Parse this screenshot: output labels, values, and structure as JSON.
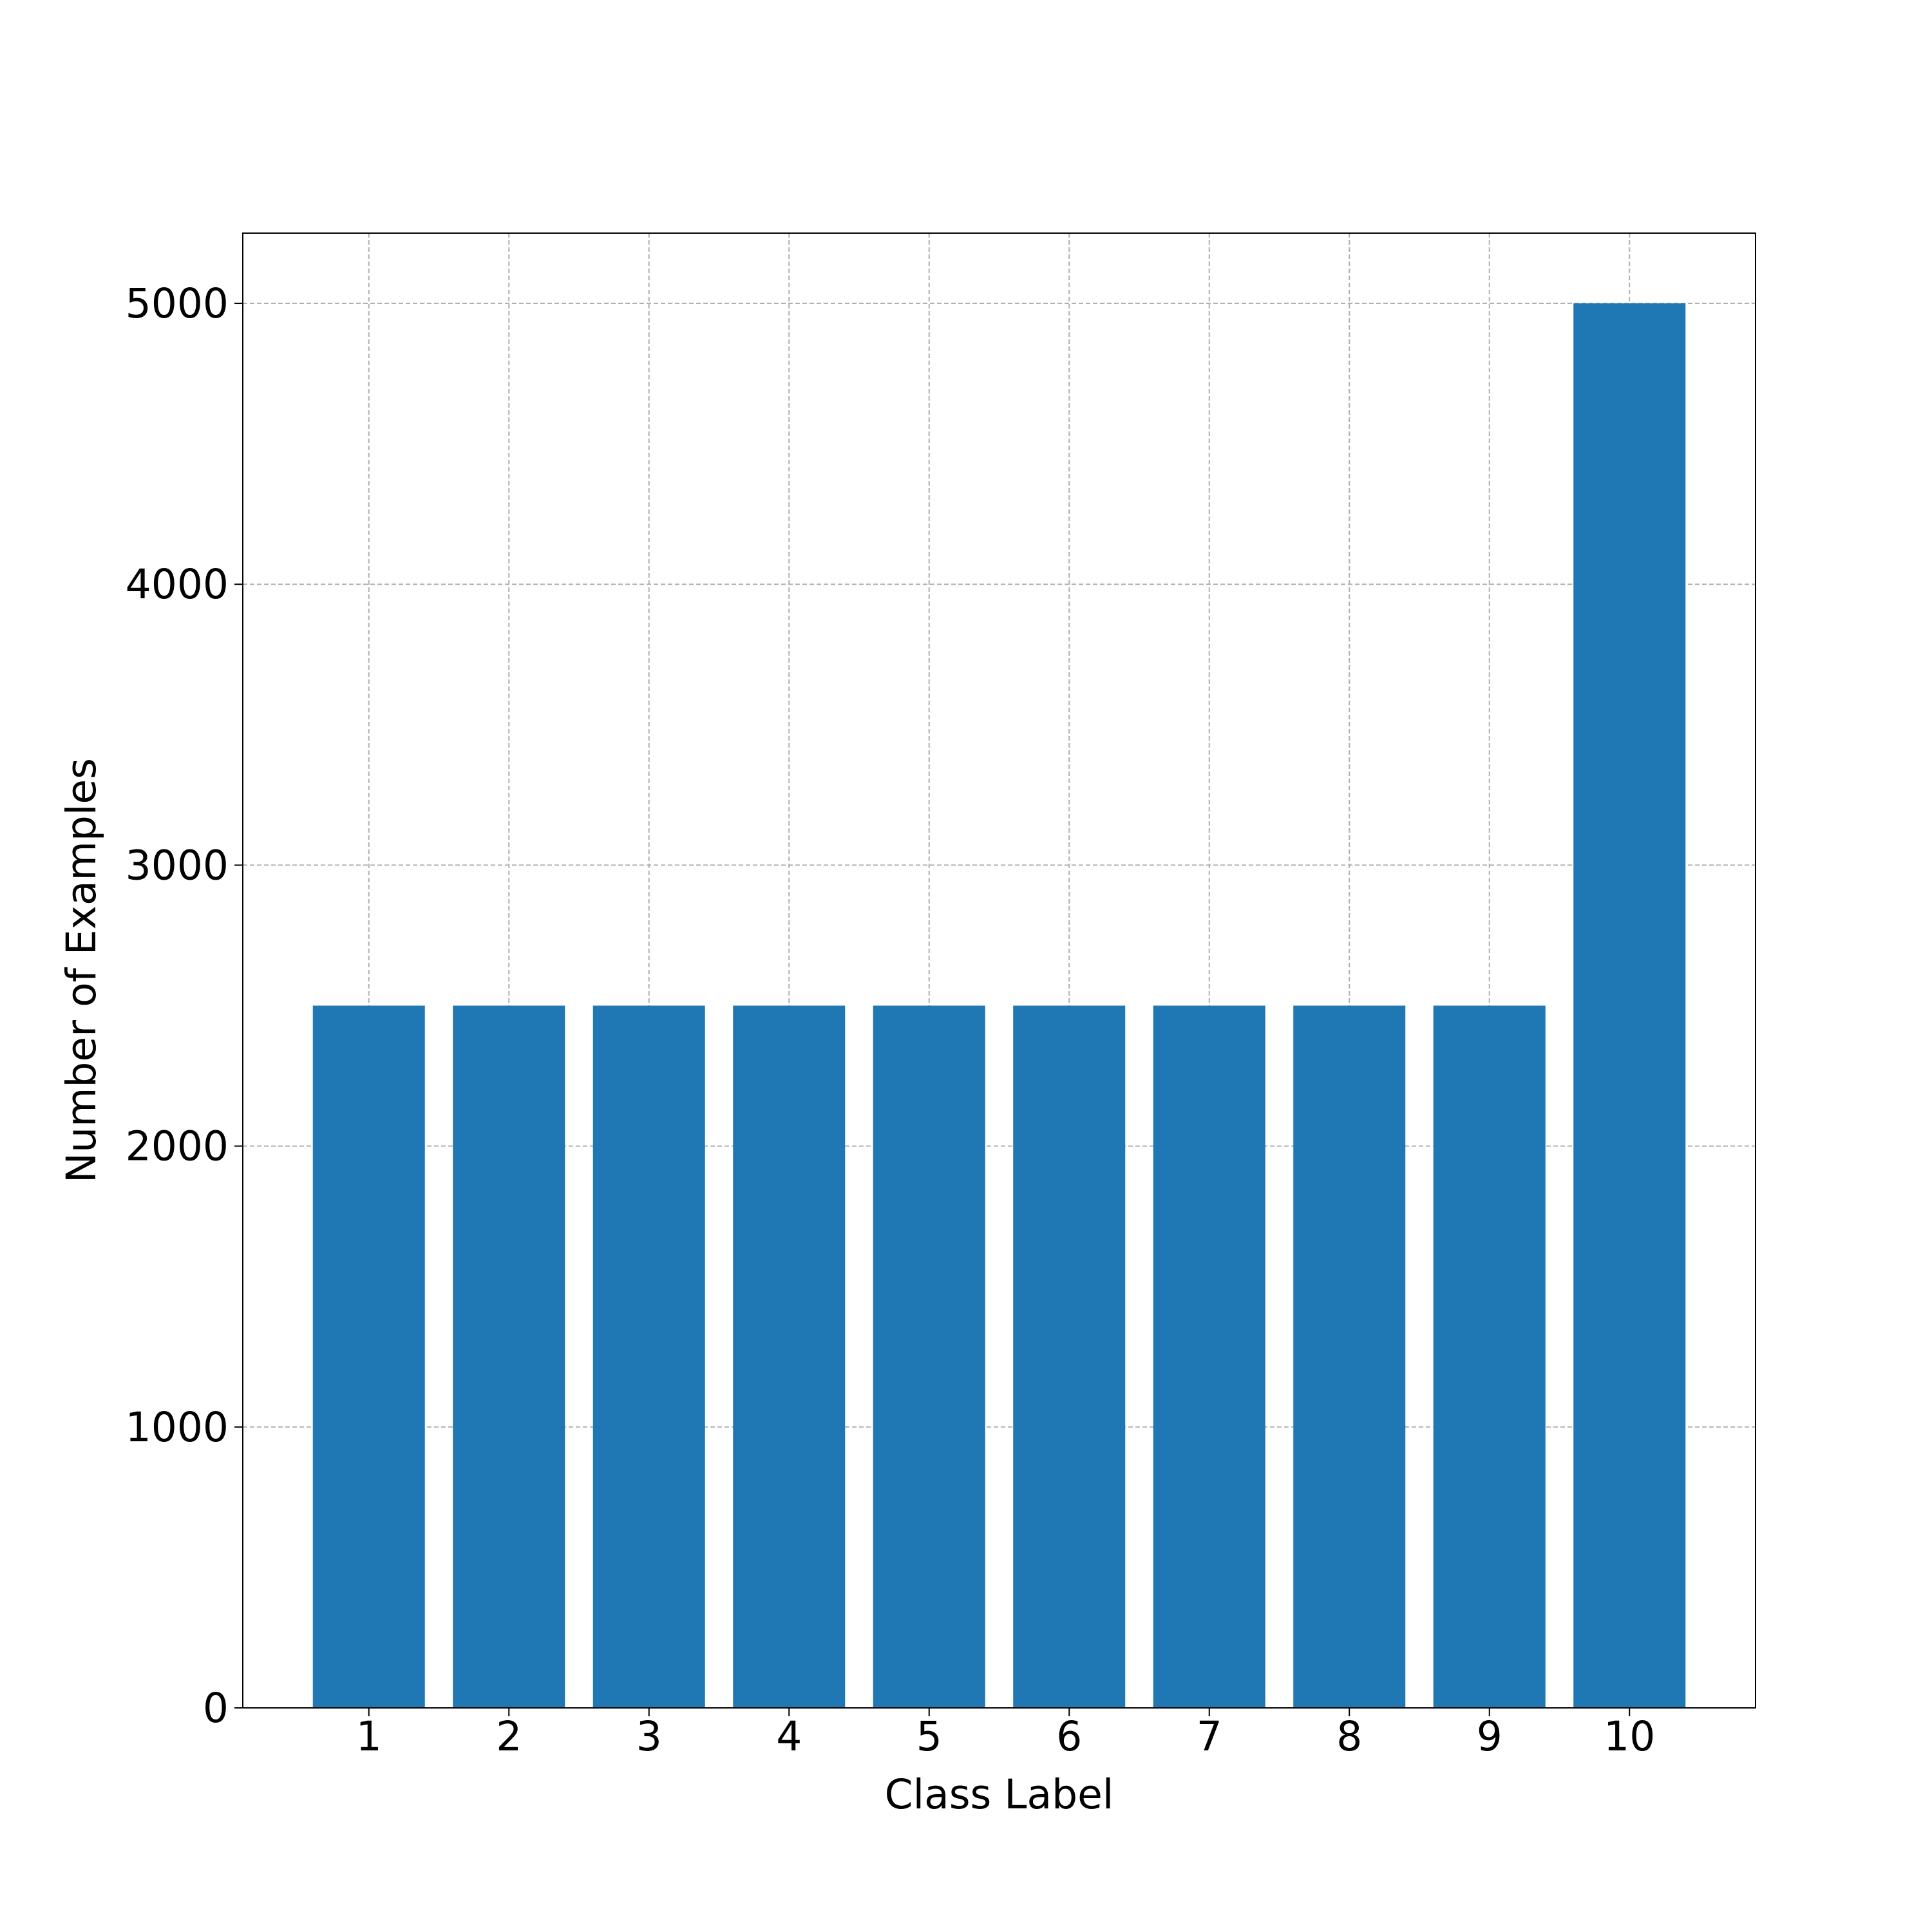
{
  "chart_data": {
    "type": "bar",
    "categories": [
      "1",
      "2",
      "3",
      "4",
      "5",
      "6",
      "7",
      "8",
      "9",
      "10"
    ],
    "values": [
      2500,
      2500,
      2500,
      2500,
      2500,
      2500,
      2500,
      2500,
      2500,
      5000
    ],
    "title": "",
    "xlabel": "Class Label",
    "ylabel": "Number of Examples",
    "ylim": [
      0,
      5250
    ],
    "yticks": [
      0,
      1000,
      2000,
      3000,
      4000,
      5000
    ],
    "ytick_labels": [
      "0",
      "1000",
      "2000",
      "3000",
      "4000",
      "5000"
    ],
    "grid": true,
    "bar_color": "#1f77b4"
  }
}
